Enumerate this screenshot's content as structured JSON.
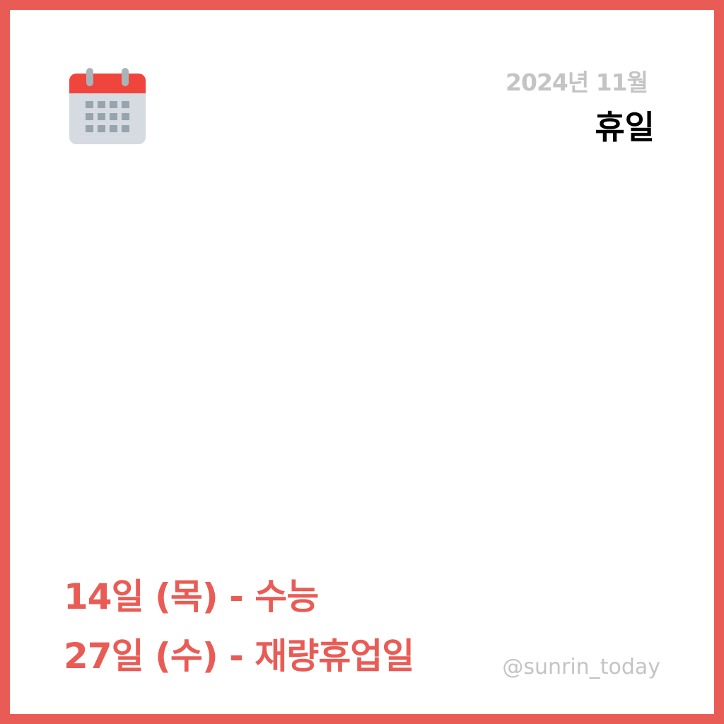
{
  "header": {
    "icon": "calendar-icon",
    "date": "2024년 11월",
    "title": "휴일"
  },
  "holidays": [
    {
      "text": "14일 (목) - 수능"
    },
    {
      "text": "27일 (수) - 재량휴업일"
    }
  ],
  "footer": {
    "handle": "@sunrin_today"
  },
  "colors": {
    "accent": "#e95c55",
    "muted": "#c4c4c4",
    "title": "#000000",
    "background": "#ffffff"
  }
}
